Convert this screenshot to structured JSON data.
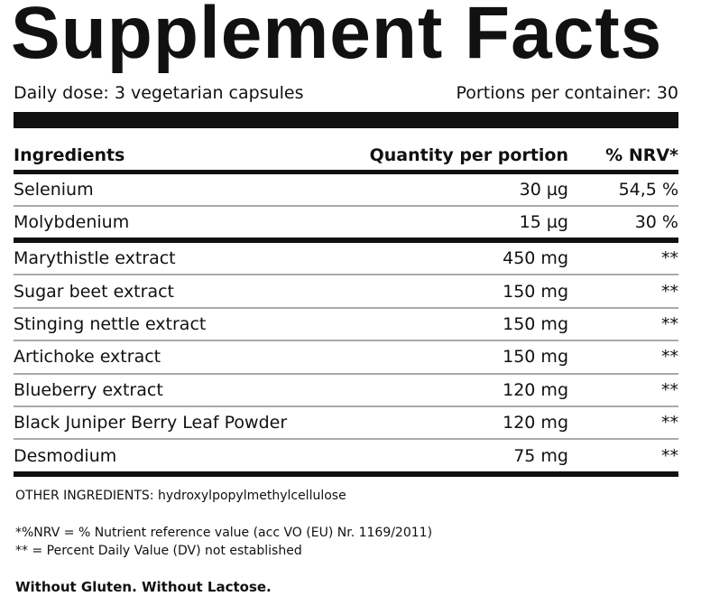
{
  "header": {
    "title": "Supplement Facts",
    "daily_dose": "Daily dose: 3 vegetarian capsules",
    "portions": "Portions per container: 30"
  },
  "table": {
    "columns": [
      "Ingredients",
      "Quantity per portion",
      "% NRV*"
    ],
    "sections": [
      {
        "rows": [
          [
            "Selenium",
            "30 µg",
            "54,5 %"
          ],
          [
            "Molybdenium",
            "15 µg",
            "30 %"
          ]
        ]
      },
      {
        "rows": [
          [
            "Marythistle extract",
            "450 mg",
            "**"
          ],
          [
            "Sugar beet extract",
            "150 mg",
            "**"
          ],
          [
            "Stinging nettle extract",
            "150 mg",
            "**"
          ],
          [
            "Artichoke extract",
            "150 mg",
            "**"
          ],
          [
            "Blueberry extract",
            "120 mg",
            "**"
          ],
          [
            "Black Juniper Berry Leaf Powder",
            "120 mg",
            "**"
          ],
          [
            "Desmodium",
            "75 mg",
            "**"
          ]
        ]
      }
    ]
  },
  "other_ingredients": "OTHER INGREDIENTS: hydroxylpopylmethylcellulose",
  "footnotes": [
    "*%NRV = % Nutrient reference value (acc VO (EU) Nr. 1169/2011)",
    "** = Percent Daily Value (DV) not established"
  ],
  "statement": "Without Gluten. Without Lactose."
}
